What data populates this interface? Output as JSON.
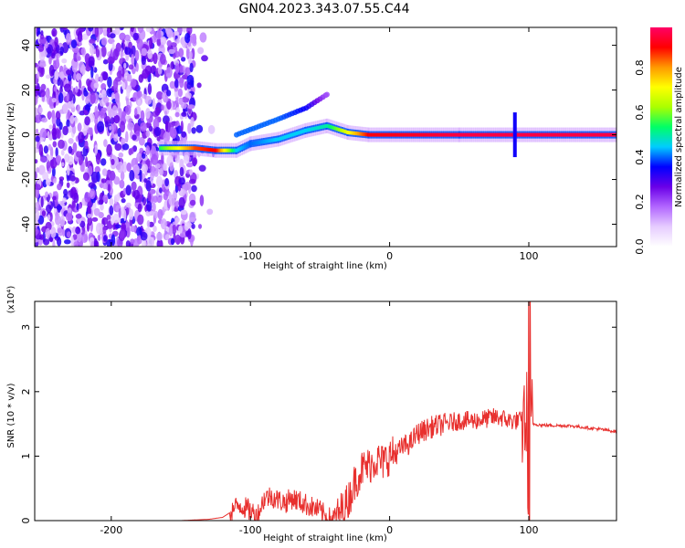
{
  "figure_title": "GN04.2023.343.07.55.C44",
  "chart_data": [
    {
      "type": "heatmap",
      "xlabel": "Height of straight line (km)",
      "ylabel": "Frequency (Hz)",
      "xlim": [
        -255,
        163
      ],
      "ylim": [
        -50,
        48
      ],
      "xticks": [
        -200,
        -100,
        0,
        100
      ],
      "yticks": [
        -40,
        -20,
        0,
        20,
        40
      ],
      "colorbar": {
        "label": "Normalized spectral amplitude",
        "range": [
          0.0,
          0.98
        ],
        "ticks": [
          0.0,
          0.2,
          0.4,
          0.6,
          0.8
        ],
        "colors": [
          "#ffffff",
          "#e6ccff",
          "#b266ff",
          "#6a00e8",
          "#0000ff",
          "#00ccff",
          "#00ff66",
          "#aaff00",
          "#ffff00",
          "#ff9900",
          "#ff0000",
          "#ff0066"
        ]
      },
      "noise_region_x": [
        -255,
        -140
      ],
      "main_band": [
        {
          "x": -165,
          "f": -6,
          "amp": 0.55
        },
        {
          "x": -140,
          "f": -6,
          "amp": 0.85
        },
        {
          "x": -125,
          "f": -7,
          "amp": 0.9
        },
        {
          "x": -110,
          "f": -7,
          "amp": 0.45
        },
        {
          "x": -100,
          "f": -4,
          "amp": 0.4
        },
        {
          "x": -80,
          "f": -2,
          "amp": 0.45
        },
        {
          "x": -60,
          "f": 2,
          "amp": 0.45
        },
        {
          "x": -45,
          "f": 4,
          "amp": 0.5
        },
        {
          "x": -30,
          "f": 1,
          "amp": 0.7
        },
        {
          "x": -15,
          "f": 0,
          "amp": 0.9
        },
        {
          "x": 50,
          "f": 0,
          "amp": 0.95
        },
        {
          "x": 90,
          "f": 0,
          "amp": 0.95
        },
        {
          "x": 163,
          "f": 0,
          "amp": 0.95
        }
      ],
      "branch_band": [
        {
          "x": -110,
          "f": 0,
          "amp": 0.4
        },
        {
          "x": -80,
          "f": 7,
          "amp": 0.4
        },
        {
          "x": -60,
          "f": 12,
          "amp": 0.35
        },
        {
          "x": -45,
          "f": 18,
          "amp": 0.2
        }
      ],
      "spike": {
        "x": 90,
        "fmin": -10,
        "fmax": 10
      }
    },
    {
      "type": "line",
      "xlabel": "Height of straight line (km)",
      "ylabel": "SNR (10 * v/v)",
      "y_multiplier": "(x10⁴)",
      "xlim": [
        -255,
        163
      ],
      "ylim": [
        0,
        3.4
      ],
      "xticks": [
        -200,
        -100,
        0,
        100
      ],
      "yticks": [
        0,
        1,
        2,
        3
      ],
      "color": "#e8302e",
      "series": [
        {
          "x": [
            -255,
            -150,
            -130,
            -120,
            -115,
            -108,
            -100,
            -95,
            -90,
            -85,
            -80,
            -75,
            -70,
            -65,
            -60,
            -55,
            -50,
            -45,
            -40,
            -38,
            -35,
            -30,
            -25,
            -20,
            -15,
            -10,
            -5,
            0,
            5,
            10,
            15,
            20,
            30,
            40,
            50,
            60,
            70,
            75,
            80,
            85,
            90,
            95,
            97,
            100,
            103,
            110,
            130,
            150,
            163
          ],
          "y": [
            0,
            0,
            0.02,
            0.05,
            0.12,
            0.25,
            0.15,
            0.08,
            0.35,
            0.38,
            0.32,
            0.28,
            0.35,
            0.3,
            0.25,
            0.2,
            0.15,
            0.05,
            0.02,
            0.05,
            0.15,
            0.3,
            0.6,
            0.8,
            0.85,
            0.95,
            0.9,
            1.0,
            1.05,
            1.15,
            1.2,
            1.35,
            1.45,
            1.5,
            1.55,
            1.55,
            1.58,
            1.6,
            1.6,
            1.55,
            1.55,
            1.55,
            1.6,
            1.55,
            1.5,
            1.48,
            1.47,
            1.42,
            1.38
          ]
        }
      ]
    }
  ]
}
